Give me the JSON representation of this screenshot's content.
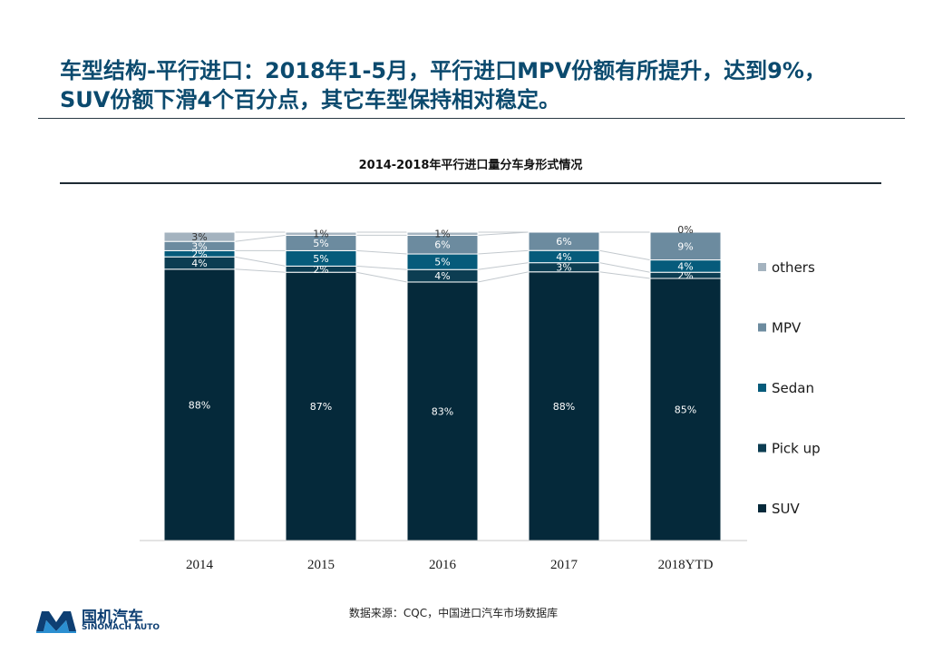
{
  "headline": {
    "line1": "车型结构-平行进口：2018年1-5月，平行进口MPV份额有所提升，达到9%，",
    "line2": "SUV份额下滑4个百分点，其它车型保持相对稳定。"
  },
  "source": "数据来源：CQC，中国进口汽车市场数据库",
  "logo": {
    "cn": "国机汽车",
    "en": "SINOMACH AUTO"
  },
  "colors": {
    "SUV": "#05293a",
    "Pick up": "#0c3d52",
    "Sedan": "#065b7b",
    "MPV": "#6c8b9f",
    "others": "#a4b3bf",
    "headline": "#0b4a6e"
  },
  "chart_data": {
    "type": "bar",
    "stacked": true,
    "title": "2014-2018年平行进口量分车身形式情况",
    "categories": [
      "2014",
      "2015",
      "2016",
      "2017",
      "2018YTD"
    ],
    "series": [
      {
        "name": "SUV",
        "values": [
          88,
          87,
          83,
          88,
          85
        ],
        "labels": [
          "88%",
          "87%",
          "83%",
          "88%",
          "85%"
        ]
      },
      {
        "name": "Pick up",
        "values": [
          4,
          2,
          4,
          3,
          2
        ],
        "labels": [
          "4%",
          "2%",
          "4%",
          "3%",
          "2%"
        ]
      },
      {
        "name": "Sedan",
        "values": [
          2,
          5,
          5,
          4,
          4
        ],
        "labels": [
          "2%",
          "5%",
          "5%",
          "4%",
          "4%"
        ]
      },
      {
        "name": "MPV",
        "values": [
          3,
          5,
          6,
          6,
          9
        ],
        "labels": [
          "3%",
          "5%",
          "6%",
          "6%",
          "9%"
        ]
      },
      {
        "name": "others",
        "values": [
          3,
          1,
          1,
          0,
          0
        ],
        "labels": [
          "3%",
          "1%",
          "1%",
          "",
          "0%"
        ]
      }
    ],
    "legend": [
      "others",
      "MPV",
      "Sedan",
      "Pick up",
      "SUV"
    ],
    "legend_position": "right",
    "series_lines": true,
    "ylim": [
      0,
      100
    ]
  }
}
